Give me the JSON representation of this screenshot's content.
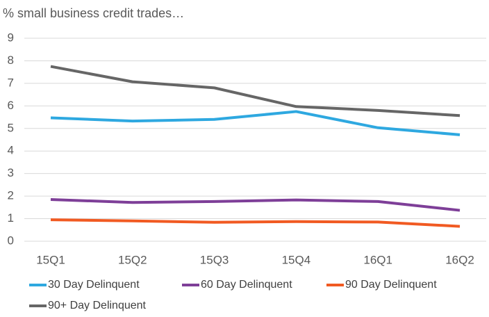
{
  "chart_data": {
    "type": "line",
    "title": "% small business credit trades…",
    "categories": [
      "15Q1",
      "15Q2",
      "15Q3",
      "15Q4",
      "16Q1",
      "16Q2"
    ],
    "series": [
      {
        "name": "30 Day Delinquent",
        "color": "#2ea8e0",
        "values": [
          5.47,
          5.33,
          5.4,
          5.75,
          5.03,
          4.72
        ]
      },
      {
        "name": "60 Day Delinquent",
        "color": "#7e3f98",
        "values": [
          1.85,
          1.72,
          1.76,
          1.83,
          1.76,
          1.37
        ]
      },
      {
        "name": "90 Day Delinquent",
        "color": "#f15a22",
        "values": [
          0.95,
          0.9,
          0.84,
          0.87,
          0.85,
          0.66
        ]
      },
      {
        "name": "90+ Day Delinquent",
        "color": "#666666",
        "values": [
          7.75,
          7.07,
          6.8,
          5.97,
          5.8,
          5.57
        ]
      }
    ],
    "ylim": [
      0,
      9
    ],
    "yticks": [
      0,
      1,
      2,
      3,
      4,
      5,
      6,
      7,
      8,
      9
    ],
    "grid": true,
    "legend": "bottom"
  }
}
